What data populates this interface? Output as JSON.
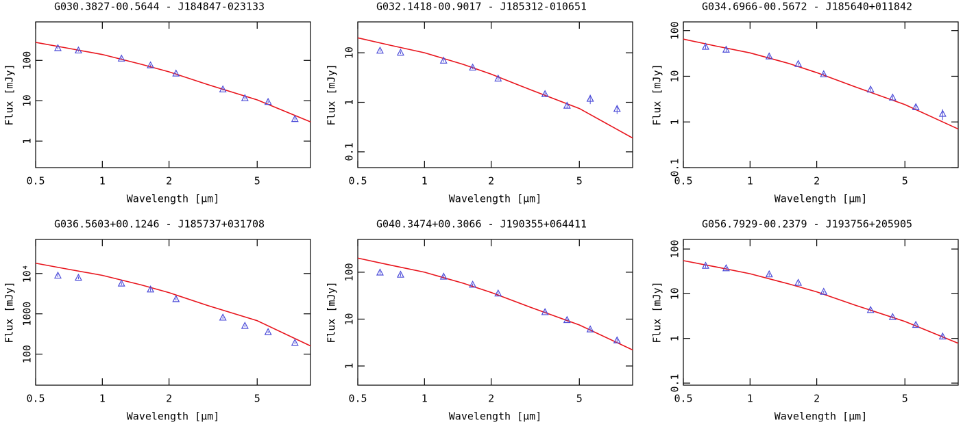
{
  "chart_data": [
    {
      "type": "line",
      "title": "G030.3827-00.5644  -  J184847-023133",
      "x_label": "Wavelength [μm]",
      "y_label": "Flux [mJy]",
      "xlog": true,
      "ylog": true,
      "xlim": [
        0.5,
        8.7
      ],
      "xticks": [
        0.5,
        1,
        2,
        5
      ],
      "ylim": [
        0.22,
        900
      ],
      "yticks": [
        1,
        10,
        100
      ],
      "series": [
        {
          "color": "#e8141c",
          "x": [
            0.5,
            0.7,
            1,
            1.5,
            2,
            3,
            5,
            8.7
          ],
          "values": [
            280,
            200,
            140,
            80,
            52,
            25,
            10.5,
            3
          ]
        },
        {
          "color": "#4b4bd8",
          "marker": "triangle",
          "x": [
            0.63,
            0.78,
            1.22,
            1.65,
            2.15,
            3.5,
            4.4,
            5.6,
            7.4
          ],
          "values": [
            200,
            175,
            110,
            75,
            47,
            19,
            11.5,
            9.3,
            3.5
          ],
          "errors": [
            12,
            10,
            6,
            4,
            2.5,
            1.2,
            0.8,
            0.7,
            0.3
          ]
        }
      ]
    },
    {
      "type": "line",
      "title": "G032.1418-00.9017  -  J185312-010651",
      "x_label": "Wavelength [μm]",
      "y_label": "Flux [mJy]",
      "xlog": true,
      "ylog": true,
      "xlim": [
        0.5,
        8.7
      ],
      "xticks": [
        0.5,
        1,
        2,
        5
      ],
      "ylim": [
        0.048,
        42
      ],
      "yticks": [
        0.1,
        1,
        10
      ],
      "series": [
        {
          "color": "#e8141c",
          "x": [
            0.5,
            0.7,
            1,
            1.5,
            2,
            3,
            5,
            8.7
          ],
          "values": [
            20,
            14.2,
            10,
            5.8,
            3.7,
            1.8,
            0.75,
            0.19
          ]
        },
        {
          "color": "#4b4bd8",
          "marker": "triangle",
          "x": [
            0.63,
            0.78,
            1.22,
            1.65,
            2.15,
            3.5,
            4.4,
            5.6,
            7.4
          ],
          "values": [
            11,
            10,
            6.9,
            5,
            3,
            1.46,
            0.85,
            1.17,
            0.73
          ],
          "errors": [
            0.6,
            0.6,
            0.4,
            0.3,
            0.2,
            0.1,
            0.08,
            0.25,
            0.15
          ]
        }
      ]
    },
    {
      "type": "line",
      "title": "G034.6966-00.5672  -  J185640+011842",
      "x_label": "Wavelength [μm]",
      "y_label": "Flux [mJy]",
      "xlog": true,
      "ylog": true,
      "xlim": [
        0.5,
        8.7
      ],
      "xticks": [
        0.5,
        1,
        2,
        5
      ],
      "ylim": [
        0.1,
        155
      ],
      "yticks": [
        0.1,
        1,
        10,
        100
      ],
      "series": [
        {
          "color": "#e8141c",
          "x": [
            0.5,
            0.7,
            1,
            1.5,
            2,
            3,
            5,
            8.7
          ],
          "values": [
            65,
            46,
            32.5,
            19,
            12,
            5.8,
            2.4,
            0.7
          ]
        },
        {
          "color": "#4b4bd8",
          "marker": "triangle",
          "x": [
            0.63,
            0.78,
            1.22,
            1.65,
            2.15,
            3.5,
            4.4,
            5.6,
            7.4
          ],
          "values": [
            44,
            38,
            27,
            18.5,
            11,
            5.1,
            3.4,
            2.1,
            1.5
          ],
          "errors": [
            4,
            3.5,
            2,
            1.2,
            0.7,
            0.4,
            0.3,
            0.3,
            0.4
          ]
        }
      ]
    },
    {
      "type": "line",
      "title": "G036.5603+00.1246  -  J185737+031708",
      "x_label": "Wavelength [μm]",
      "y_label": "Flux [mJy]",
      "xlog": true,
      "ylog": true,
      "xlim": [
        0.5,
        8.7
      ],
      "xticks": [
        0.5,
        1,
        2,
        5
      ],
      "ylim": [
        17,
        70000
      ],
      "yticks": [
        100,
        1000,
        {
          "value": 10000,
          "label": "10⁴"
        }
      ],
      "series": [
        {
          "color": "#e8141c",
          "x": [
            0.5,
            0.7,
            1,
            1.5,
            2,
            3,
            5,
            8.7
          ],
          "values": [
            18000,
            12800,
            9000,
            5200,
            3350,
            1600,
            675,
            160
          ]
        },
        {
          "color": "#4b4bd8",
          "marker": "triangle",
          "x": [
            0.63,
            0.78,
            1.22,
            1.65,
            2.15,
            3.5,
            4.4,
            5.6,
            7.4
          ],
          "values": [
            8800,
            7800,
            5600,
            4000,
            2300,
            800,
            500,
            350,
            190
          ],
          "errors": [
            700,
            600,
            500,
            350,
            150,
            50,
            30,
            20,
            12
          ]
        }
      ]
    },
    {
      "type": "line",
      "title": "G040.3474+00.3066  -  J190355+064411",
      "x_label": "Wavelength [μm]",
      "y_label": "Flux [mJy]",
      "xlog": true,
      "ylog": true,
      "xlim": [
        0.5,
        8.7
      ],
      "xticks": [
        0.5,
        1,
        2,
        5
      ],
      "ylim": [
        0.39,
        500
      ],
      "yticks": [
        1,
        10,
        100
      ],
      "series": [
        {
          "color": "#e8141c",
          "x": [
            0.5,
            0.7,
            1,
            1.5,
            2,
            3,
            5,
            8.7
          ],
          "values": [
            200,
            142,
            100,
            58,
            37,
            18,
            7.5,
            2.2
          ]
        },
        {
          "color": "#4b4bd8",
          "marker": "triangle",
          "x": [
            0.63,
            0.78,
            1.22,
            1.65,
            2.15,
            3.5,
            4.4,
            5.6,
            7.4
          ],
          "values": [
            98,
            88,
            80,
            54,
            35,
            14,
            9.5,
            6,
            3.5
          ],
          "errors": [
            8,
            7,
            6,
            3,
            2,
            0.8,
            0.6,
            0.4,
            0.3
          ]
        }
      ]
    },
    {
      "type": "line",
      "title": "G056.7929-00.2379  -  J193756+205905",
      "x_label": "Wavelength [μm]",
      "y_label": "Flux [mJy]",
      "xlog": true,
      "ylog": true,
      "xlim": [
        0.5,
        8.7
      ],
      "xticks": [
        0.5,
        1,
        2,
        5
      ],
      "ylim": [
        0.09,
        164
      ],
      "yticks": [
        0.1,
        1,
        10,
        100
      ],
      "series": [
        {
          "color": "#e8141c",
          "x": [
            0.5,
            0.7,
            1,
            1.5,
            2,
            3,
            5,
            8.7
          ],
          "values": [
            55,
            40,
            28,
            16.5,
            11,
            5.5,
            2.4,
            0.78
          ]
        },
        {
          "color": "#4b4bd8",
          "marker": "triangle",
          "x": [
            0.63,
            0.78,
            1.22,
            1.65,
            2.15,
            3.5,
            4.4,
            5.6,
            7.4
          ],
          "values": [
            42,
            37,
            27,
            17.5,
            11,
            4.3,
            3,
            2,
            1.1
          ],
          "errors": [
            3.5,
            3,
            2,
            1.2,
            0.7,
            0.3,
            0.2,
            0.15,
            0.1
          ]
        }
      ]
    }
  ]
}
